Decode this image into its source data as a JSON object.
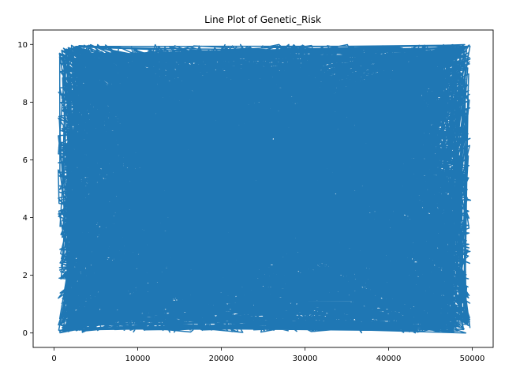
{
  "chart_data": {
    "type": "line",
    "title": "Line Plot of Genetic_Risk",
    "xlabel": "",
    "ylabel": "",
    "xlim": [
      -2500,
      52500
    ],
    "ylim": [
      -0.5,
      10.5
    ],
    "x_ticks": [
      0,
      10000,
      20000,
      30000,
      40000,
      50000
    ],
    "x_tick_labels": [
      "0",
      "10000",
      "20000",
      "30000",
      "40000",
      "50000"
    ],
    "y_ticks": [
      0,
      2,
      4,
      6,
      8,
      10
    ],
    "y_tick_labels": [
      "0",
      "2",
      "4",
      "6",
      "8",
      "10"
    ],
    "grid": false,
    "legend": "none",
    "series": [
      {
        "color": "#1f77b4",
        "x_range": [
          0,
          50000
        ],
        "y_range": [
          0,
          10
        ],
        "points": [
          [
            520,
            7.5
          ],
          [
            48200,
            9.9
          ],
          [
            1100,
            0.1
          ],
          [
            47500,
            0.3
          ],
          [
            600,
            5.1
          ],
          [
            49800,
            4.6
          ],
          [
            900,
            9.8
          ],
          [
            46000,
            0.2
          ],
          [
            2000,
            6.3
          ],
          [
            49200,
            1.4
          ],
          [
            700,
            2.9
          ],
          [
            48800,
            8.4
          ],
          [
            1500,
            0.4
          ],
          [
            45000,
            9.7
          ],
          [
            800,
            4.2
          ],
          [
            49500,
            6.9
          ],
          [
            3000,
            9.6
          ],
          [
            49100,
            2.1
          ],
          [
            1200,
            8.7
          ],
          [
            47000,
            0.6
          ],
          [
            600,
            1.9
          ],
          [
            48500,
            5.3
          ],
          [
            2500,
            9.9
          ],
          [
            46800,
            0.1
          ],
          [
            900,
            3.7
          ],
          [
            49700,
            7.8
          ],
          [
            1800,
            0.3
          ],
          [
            44000,
            9.5
          ],
          [
            700,
            6.1
          ],
          [
            49300,
            3.2
          ],
          [
            1300,
            9.2
          ],
          [
            48100,
            0.9
          ],
          [
            5000,
            7.0
          ],
          [
            47800,
            9.3
          ],
          [
            1000,
            1.2
          ],
          [
            49600,
            5.8
          ]
        ]
      }
    ]
  }
}
